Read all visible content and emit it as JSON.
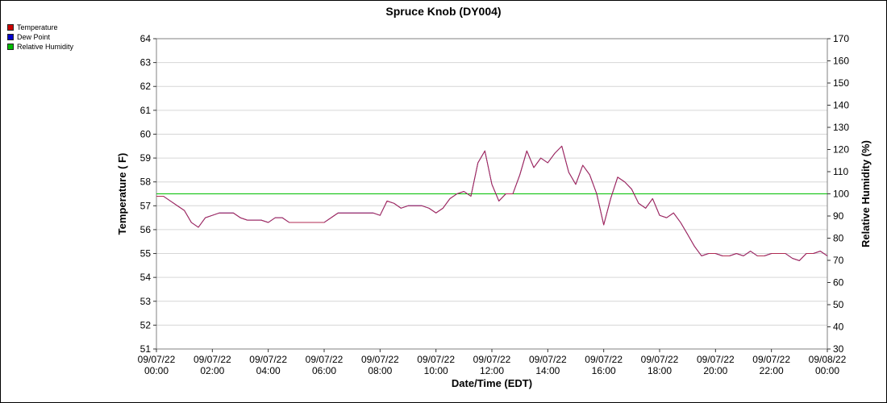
{
  "title": "Spruce Knob (DY004)",
  "legend": [
    {
      "label": "Temperature",
      "color": "#cc0000"
    },
    {
      "label": "Dew Point",
      "color": "#0000cc"
    },
    {
      "label": "Relative Humidity",
      "color": "#00bb00"
    }
  ],
  "chart_data": {
    "type": "line",
    "title": "Spruce Knob (DY004)",
    "xlabel": "Date/Time (EDT)",
    "ylabel_left": "Temperature ( F)",
    "ylabel_right": "Relative Humidity (%)",
    "ylim_left": [
      51,
      64
    ],
    "ylim_right": [
      30,
      170
    ],
    "yticks_left": [
      51,
      52,
      53,
      54,
      55,
      56,
      57,
      58,
      59,
      60,
      61,
      62,
      63,
      64
    ],
    "yticks_right": [
      30,
      40,
      50,
      60,
      70,
      80,
      90,
      100,
      110,
      120,
      130,
      140,
      150,
      160,
      170
    ],
    "xlim_hours": [
      0,
      24
    ],
    "x_ticks": [
      {
        "hour": 0,
        "date": "09/07/22",
        "time": "00:00"
      },
      {
        "hour": 2,
        "date": "09/07/22",
        "time": "02:00"
      },
      {
        "hour": 4,
        "date": "09/07/22",
        "time": "04:00"
      },
      {
        "hour": 6,
        "date": "09/07/22",
        "time": "06:00"
      },
      {
        "hour": 8,
        "date": "09/07/22",
        "time": "08:00"
      },
      {
        "hour": 10,
        "date": "09/07/22",
        "time": "10:00"
      },
      {
        "hour": 12,
        "date": "09/07/22",
        "time": "12:00"
      },
      {
        "hour": 14,
        "date": "09/07/22",
        "time": "14:00"
      },
      {
        "hour": 16,
        "date": "09/07/22",
        "time": "16:00"
      },
      {
        "hour": 18,
        "date": "09/07/22",
        "time": "18:00"
      },
      {
        "hour": 20,
        "date": "09/07/22",
        "time": "20:00"
      },
      {
        "hour": 22,
        "date": "09/07/22",
        "time": "22:00"
      },
      {
        "hour": 24,
        "date": "09/08/22",
        "time": "00:00"
      }
    ],
    "x_start_hour": 0,
    "x_step_hours": 0.25,
    "series": [
      {
        "name": "Temperature",
        "axis": "left",
        "color": "#b02a50",
        "values": [
          57.4,
          57.4,
          57.2,
          57.0,
          56.8,
          56.3,
          56.1,
          56.5,
          56.6,
          56.7,
          56.7,
          56.7,
          56.5,
          56.4,
          56.4,
          56.4,
          56.3,
          56.5,
          56.5,
          56.3,
          56.3,
          56.3,
          56.3,
          56.3,
          56.3,
          56.5,
          56.7,
          56.7,
          56.7,
          56.7,
          56.7,
          56.7,
          56.6,
          57.2,
          57.1,
          56.9,
          57.0,
          57.0,
          57.0,
          56.9,
          56.7,
          56.9,
          57.3,
          57.5,
          57.6,
          57.4,
          58.8,
          59.3,
          57.9,
          57.2,
          57.5,
          57.5,
          58.3,
          59.3,
          58.6,
          59.0,
          58.8,
          59.2,
          59.5,
          58.4,
          57.9,
          58.7,
          58.3,
          57.5,
          56.2,
          57.3,
          58.2,
          58.0,
          57.7,
          57.1,
          56.9,
          57.3,
          56.6,
          56.5,
          56.7,
          56.3,
          55.8,
          55.3,
          54.9,
          55.0,
          55.0,
          54.9,
          54.9,
          55.0,
          54.9,
          55.1,
          54.9,
          54.9,
          55.0,
          55.0,
          55.0,
          54.8,
          54.7,
          55.0,
          55.0,
          55.1,
          54.9
        ]
      },
      {
        "name": "Dew Point",
        "axis": "left",
        "color": "#0000cc",
        "values": [
          57.4,
          57.4,
          57.2,
          57.0,
          56.8,
          56.3,
          56.1,
          56.5,
          56.6,
          56.7,
          56.7,
          56.7,
          56.5,
          56.4,
          56.4,
          56.4,
          56.3,
          56.5,
          56.5,
          56.3,
          56.3,
          56.3,
          56.3,
          56.3,
          56.3,
          56.5,
          56.7,
          56.7,
          56.7,
          56.7,
          56.7,
          56.7,
          56.6,
          57.2,
          57.1,
          56.9,
          57.0,
          57.0,
          57.0,
          56.9,
          56.7,
          56.9,
          57.3,
          57.5,
          57.6,
          57.4,
          58.8,
          59.3,
          57.9,
          57.2,
          57.5,
          57.5,
          58.3,
          59.3,
          58.6,
          59.0,
          58.8,
          59.2,
          59.5,
          58.4,
          57.9,
          58.7,
          58.3,
          57.5,
          56.2,
          57.3,
          58.2,
          58.0,
          57.7,
          57.1,
          56.9,
          57.3,
          56.6,
          56.5,
          56.7,
          56.3,
          55.8,
          55.3,
          54.9,
          55.0,
          55.0,
          54.9,
          54.9,
          55.0,
          54.9,
          55.1,
          54.9,
          54.9,
          55.0,
          55.0,
          55.0,
          54.8,
          54.7,
          55.0,
          55.0,
          55.1,
          54.9
        ]
      },
      {
        "name": "Relative Humidity",
        "axis": "right",
        "color": "#00c000",
        "x": [
          0,
          24
        ],
        "values": [
          100,
          100
        ]
      }
    ],
    "grid": "horizontal",
    "legend_position": "top-left"
  }
}
